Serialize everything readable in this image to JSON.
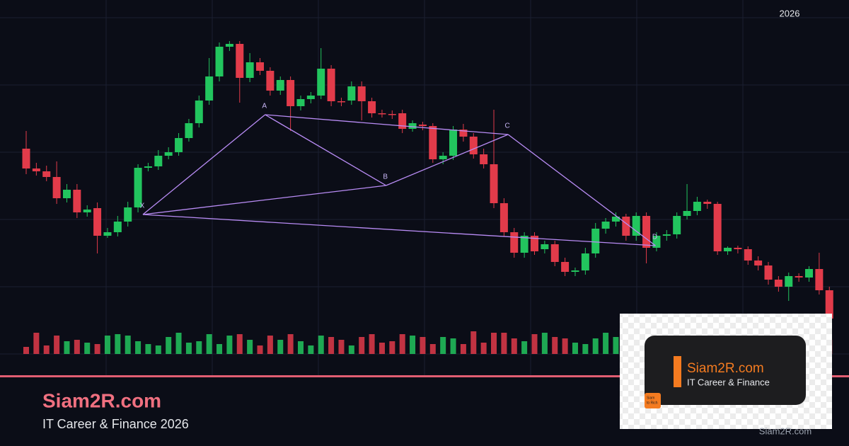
{
  "chart_data": {
    "type": "candlestick",
    "open": [
      290,
      262,
      258,
      250,
      220,
      232,
      200,
      206,
      167,
      172,
      187,
      207,
      263,
      265,
      280,
      285,
      305,
      326,
      358,
      392,
      434,
      438,
      390,
      412,
      400,
      372,
      387,
      350,
      360,
      365,
      403,
      357,
      358,
      378,
      357,
      340,
      339,
      340,
      318,
      324,
      322,
      275,
      280,
      317,
      307,
      282,
      268,
      213,
      172,
      143,
      167,
      148,
      155,
      130,
      116,
      118,
      142,
      177,
      187,
      194,
      167,
      195,
      150,
      167,
      169,
      195,
      202,
      215,
      212,
      145,
      150,
      148,
      132,
      125,
      105,
      95,
      110,
      108,
      120,
      90
    ],
    "high": [
      315,
      270,
      266,
      272,
      240,
      240,
      210,
      214,
      178,
      195,
      215,
      268,
      270,
      288,
      292,
      312,
      332,
      365,
      418,
      440,
      442,
      442,
      425,
      418,
      405,
      392,
      392,
      365,
      370,
      432,
      408,
      362,
      385,
      385,
      362,
      345,
      344,
      345,
      330,
      328,
      326,
      285,
      322,
      325,
      312,
      290,
      345,
      220,
      178,
      172,
      172,
      160,
      160,
      136,
      122,
      150,
      185,
      192,
      200,
      198,
      200,
      200,
      172,
      175,
      200,
      240,
      222,
      218,
      215,
      152,
      153,
      152,
      138,
      130,
      110,
      115,
      114,
      124,
      143,
      95
    ],
    "low": [
      254,
      252,
      244,
      212,
      214,
      192,
      194,
      142,
      164,
      166,
      180,
      200,
      258,
      260,
      275,
      280,
      300,
      320,
      352,
      385,
      428,
      355,
      384,
      394,
      365,
      366,
      315,
      344,
      354,
      360,
      350,
      350,
      352,
      330,
      334,
      334,
      332,
      312,
      314,
      316,
      270,
      268,
      274,
      300,
      276,
      262,
      206,
      166,
      136,
      136,
      140,
      142,
      124,
      110,
      110,
      112,
      136,
      170,
      180,
      160,
      160,
      128,
      145,
      160,
      163,
      190,
      196,
      205,
      140,
      140,
      142,
      126,
      118,
      98,
      88,
      75,
      102,
      102,
      84,
      45
    ],
    "close": [
      262,
      258,
      250,
      220,
      232,
      200,
      204,
      167,
      172,
      187,
      207,
      263,
      265,
      280,
      285,
      305,
      326,
      358,
      392,
      434,
      438,
      390,
      412,
      400,
      372,
      387,
      350,
      360,
      365,
      403,
      357,
      356,
      378,
      357,
      340,
      339,
      338,
      318,
      326,
      322,
      275,
      280,
      317,
      307,
      282,
      268,
      213,
      172,
      143,
      167,
      145,
      155,
      130,
      116,
      118,
      142,
      177,
      187,
      194,
      167,
      195,
      150,
      167,
      169,
      195,
      202,
      215,
      212,
      145,
      150,
      148,
      132,
      125,
      105,
      95,
      110,
      108,
      120,
      90,
      50
    ],
    "volume": [
      10,
      30,
      12,
      26,
      18,
      20,
      16,
      14,
      26,
      28,
      26,
      18,
      14,
      12,
      24,
      30,
      16,
      18,
      28,
      14,
      26,
      28,
      20,
      12,
      26,
      20,
      28,
      18,
      12,
      26,
      24,
      20,
      12,
      24,
      28,
      16,
      18,
      28,
      26,
      24,
      14,
      24,
      22,
      14,
      32,
      16,
      30,
      30,
      22,
      18,
      28,
      30,
      24,
      22,
      16,
      14,
      22,
      30,
      24,
      14,
      22,
      18,
      20,
      14,
      26,
      28,
      22,
      16,
      24,
      20,
      28,
      16,
      22,
      18,
      26,
      14,
      20,
      18,
      22,
      20
    ],
    "ylim": [
      0,
      500
    ],
    "y2lim": [
      0,
      100
    ],
    "grid": true,
    "up_color": "#22c55e",
    "down_color": "#e23b4a",
    "pattern": {
      "labels": [
        "X",
        "A",
        "B",
        "C",
        "D"
      ],
      "x": [
        11.48,
        23.5,
        35.4,
        47.4,
        61.9
      ],
      "y": [
        197,
        338,
        238,
        310,
        153
      ],
      "color": "#b98cf5"
    }
  },
  "year": "2026",
  "brand": {
    "title": "Siam2R.com",
    "subtitle": "IT Career & Finance 2026"
  },
  "watermark": "Siam2R.com",
  "logo_card": {
    "title": "Siam2R.com",
    "subtitle": "IT Career & Finance",
    "icon_lines": [
      "Siam",
      "to Rich"
    ]
  }
}
